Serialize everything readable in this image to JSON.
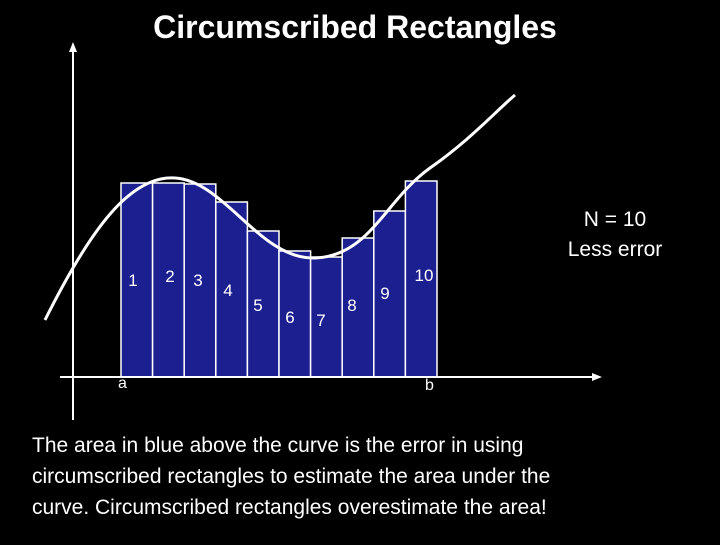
{
  "title": "Circumscribed Rectangles",
  "rectangle_labels": [
    "1",
    "2",
    "3",
    "4",
    "5",
    "6",
    "7",
    "8",
    "9",
    "10"
  ],
  "axis_labels": {
    "a": "a",
    "b": "b"
  },
  "note": {
    "line1": "N = 10",
    "line2": "Less error"
  },
  "caption": [
    "The area in blue above the curve is the error in using",
    "circumscribed rectangles to estimate the area under the",
    "curve.  Circumscribed rectangles overestimate the area!"
  ]
}
